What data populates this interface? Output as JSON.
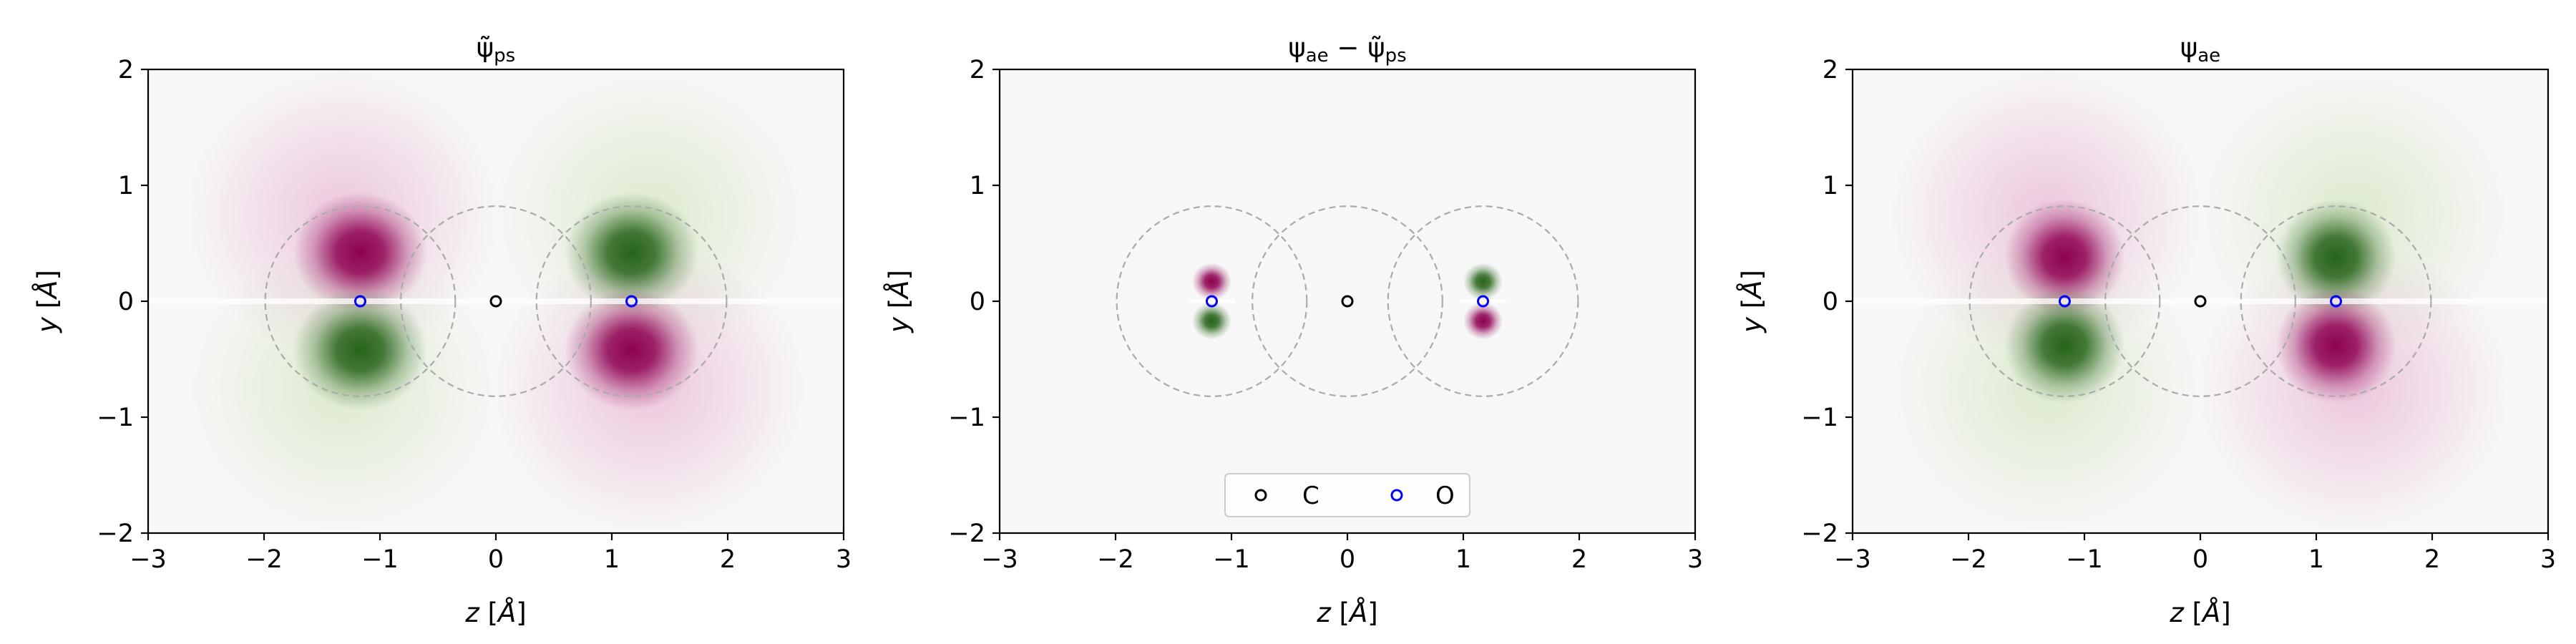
{
  "colors": {
    "negative": "#8e0152",
    "positive": "#276419",
    "neutral": "#f7f7f7",
    "carbon_marker": "#000000",
    "oxygen_marker": "#0000ff",
    "sphere": "#aaaaaa"
  },
  "chart_data": [
    {
      "type": "heatmap",
      "title": "ψ̃ps",
      "title_main": "ψ̃",
      "title_sub": "ps",
      "xlabel": "z [Å]",
      "ylabel": "y [Å]",
      "xlim": [
        -3,
        3
      ],
      "ylim": [
        -2,
        2
      ],
      "xticks": [
        -3,
        -2,
        -1,
        0,
        1,
        2,
        3
      ],
      "yticks": [
        -2,
        -1,
        0,
        1,
        2
      ],
      "xtick_labels": [
        "−3",
        "−2",
        "−1",
        "0",
        "1",
        "2",
        "3"
      ],
      "ytick_labels": [
        "−2",
        "−1",
        "0",
        "1",
        "2"
      ],
      "colormap": "PiYG",
      "field": "pseudo",
      "atoms": [
        {
          "element": "O",
          "z": -1.17,
          "y": 0
        },
        {
          "element": "C",
          "z": 0,
          "y": 0
        },
        {
          "element": "O",
          "z": 1.17,
          "y": 0
        }
      ],
      "sphere_radius": 0.82,
      "legend": false
    },
    {
      "type": "heatmap",
      "title": "ψae − ψ̃ps",
      "title_main1": "ψ",
      "title_sub1": "ae",
      "title_op": " − ",
      "title_main2": "ψ̃",
      "title_sub2": "ps",
      "xlabel": "z [Å]",
      "ylabel": "y [Å]",
      "xlim": [
        -3,
        3
      ],
      "ylim": [
        -2,
        2
      ],
      "xticks": [
        -3,
        -2,
        -1,
        0,
        1,
        2,
        3
      ],
      "yticks": [
        -2,
        -1,
        0,
        1,
        2
      ],
      "xtick_labels": [
        "−3",
        "−2",
        "−1",
        "0",
        "1",
        "2",
        "3"
      ],
      "ytick_labels": [
        "−2",
        "−1",
        "0",
        "1",
        "2"
      ],
      "colormap": "PiYG",
      "field": "difference",
      "atoms": [
        {
          "element": "O",
          "z": -1.17,
          "y": 0
        },
        {
          "element": "C",
          "z": 0,
          "y": 0
        },
        {
          "element": "O",
          "z": 1.17,
          "y": 0
        }
      ],
      "sphere_radius": 0.82,
      "legend": true,
      "legend_placement": "lower center",
      "legend_entries": [
        "C",
        "O"
      ]
    },
    {
      "type": "heatmap",
      "title": "ψae",
      "title_main": "ψ",
      "title_sub": "ae",
      "xlabel": "z [Å]",
      "ylabel": "y [Å]",
      "xlim": [
        -3,
        3
      ],
      "ylim": [
        -2,
        2
      ],
      "xticks": [
        -3,
        -2,
        -1,
        0,
        1,
        2,
        3
      ],
      "yticks": [
        -2,
        -1,
        0,
        1,
        2
      ],
      "xtick_labels": [
        "−3",
        "−2",
        "−1",
        "0",
        "1",
        "2",
        "3"
      ],
      "ytick_labels": [
        "−2",
        "−1",
        "0",
        "1",
        "2"
      ],
      "colormap": "PiYG",
      "field": "all-electron",
      "atoms": [
        {
          "element": "O",
          "z": -1.17,
          "y": 0
        },
        {
          "element": "C",
          "z": 0,
          "y": 0
        },
        {
          "element": "O",
          "z": 1.17,
          "y": 0
        }
      ],
      "sphere_radius": 0.82,
      "legend": false
    }
  ]
}
